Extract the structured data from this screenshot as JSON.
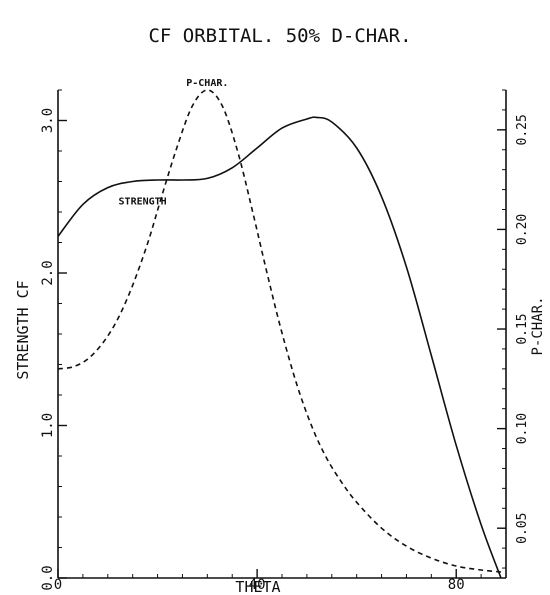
{
  "chart_data": {
    "type": "line",
    "title": "CF ORBITAL. 50% D-CHAR.",
    "xlabel": "THETA",
    "ylabel_left": "STRENGTH CF",
    "ylabel_right": "P-CHAR.",
    "xlim": [
      0,
      90
    ],
    "ylim_left": [
      0.0,
      3.2
    ],
    "ylim_right": [
      0.025,
      0.27
    ],
    "grid": false,
    "x_ticks": [
      {
        "v": 0,
        "label": "0"
      },
      {
        "v": 40,
        "label": "40"
      },
      {
        "v": 80,
        "label": "80"
      }
    ],
    "x_minor_step": 5,
    "left_ticks": [
      {
        "v": 0.0,
        "label": "0.0"
      },
      {
        "v": 1.0,
        "label": "1.0"
      },
      {
        "v": 2.0,
        "label": "2.0"
      },
      {
        "v": 3.0,
        "label": "3.0"
      }
    ],
    "left_minor_step": 0.2,
    "right_ticks": [
      {
        "v": 0.05,
        "label": "0.05"
      },
      {
        "v": 0.1,
        "label": "0.10"
      },
      {
        "v": 0.15,
        "label": "0.15"
      },
      {
        "v": 0.2,
        "label": "0.20"
      },
      {
        "v": 0.25,
        "label": "0.25"
      }
    ],
    "right_minor_step": 0.01,
    "series": [
      {
        "name": "STRENGTH",
        "axis": "left",
        "style": "solid",
        "label_at": {
          "x": 17,
          "y": 2.45
        },
        "x": [
          0,
          5,
          10,
          15,
          20,
          25,
          30,
          35,
          40,
          45,
          50,
          52,
          55,
          60,
          65,
          70,
          75,
          80,
          85,
          89
        ],
        "y": [
          2.24,
          2.45,
          2.56,
          2.6,
          2.61,
          2.61,
          2.62,
          2.69,
          2.82,
          2.95,
          3.01,
          3.02,
          2.99,
          2.82,
          2.5,
          2.04,
          1.46,
          0.87,
          0.35,
          0.0
        ]
      },
      {
        "name": "P-CHAR.",
        "axis": "right",
        "style": "dashed",
        "label_at": {
          "x": 30,
          "y": 0.272
        },
        "x": [
          0,
          3,
          6,
          9,
          12,
          15,
          18,
          21,
          24,
          27,
          30,
          33,
          36,
          39,
          42,
          45,
          48,
          51,
          54,
          57,
          60,
          65,
          70,
          75,
          80,
          85,
          89
        ],
        "y": [
          0.13,
          0.131,
          0.135,
          0.143,
          0.155,
          0.172,
          0.193,
          0.218,
          0.242,
          0.262,
          0.27,
          0.262,
          0.24,
          0.21,
          0.178,
          0.148,
          0.122,
          0.101,
          0.085,
          0.073,
          0.063,
          0.05,
          0.041,
          0.035,
          0.031,
          0.029,
          0.028
        ]
      }
    ]
  }
}
